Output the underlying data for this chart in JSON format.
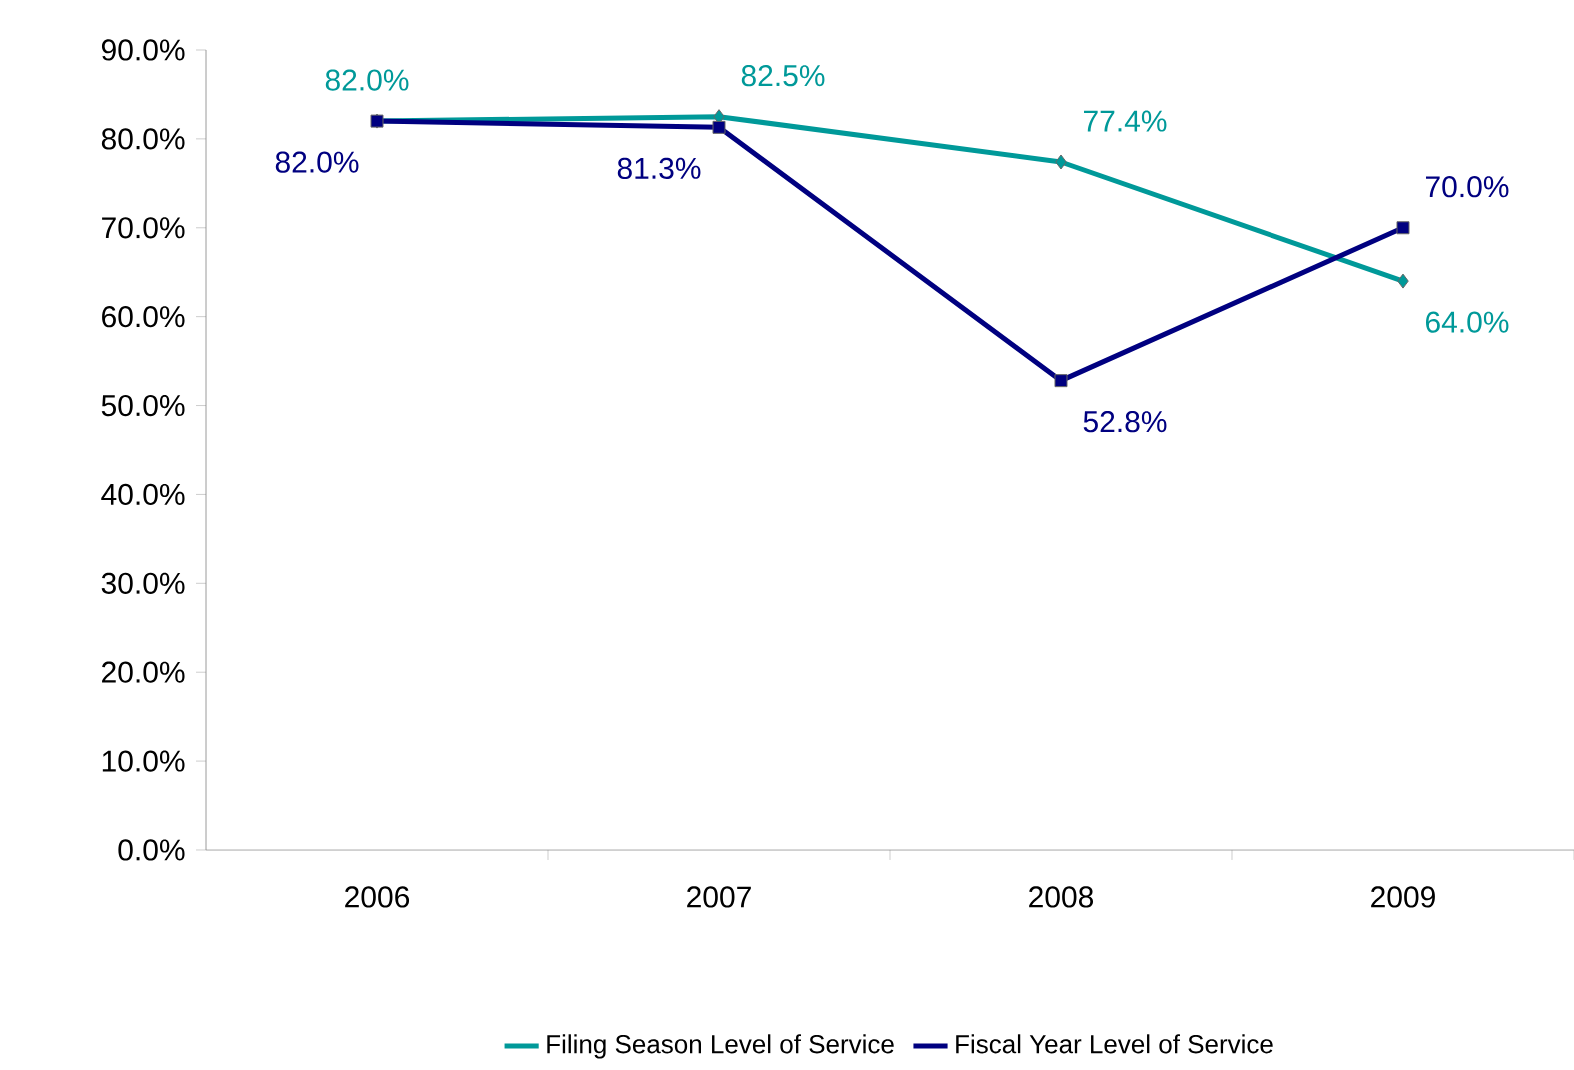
{
  "chart_data": {
    "type": "line",
    "categories": [
      "2006",
      "2007",
      "2008",
      "2009"
    ],
    "series": [
      {
        "name": "Filing Season Level of Service",
        "color": "#009999",
        "marker": "diamond",
        "values": [
          82.0,
          82.5,
          77.4,
          64.0
        ],
        "value_labels": [
          "82.0%",
          "82.5%",
          "77.4%",
          "64.0%"
        ]
      },
      {
        "name": "Fiscal Year Level of Service",
        "color": "#000080",
        "marker": "square",
        "values": [
          82.0,
          81.3,
          52.8,
          70.0
        ],
        "value_labels": [
          "82.0%",
          "81.3%",
          "52.8%",
          "70.0%"
        ]
      }
    ],
    "ylim": [
      0,
      90
    ],
    "yticks": [
      {
        "value": 0,
        "label": "0.0%"
      },
      {
        "value": 10,
        "label": "10.0%"
      },
      {
        "value": 20,
        "label": "20.0%"
      },
      {
        "value": 30,
        "label": "30.0%"
      },
      {
        "value": 40,
        "label": "40.0%"
      },
      {
        "value": 50,
        "label": "50.0%"
      },
      {
        "value": 60,
        "label": "60.0%"
      },
      {
        "value": 70,
        "label": "70.0%"
      },
      {
        "value": 80,
        "label": "80.0%"
      },
      {
        "value": 90,
        "label": "90.0%"
      }
    ],
    "grid": false,
    "legend": "bottom",
    "line_style": "solid"
  }
}
